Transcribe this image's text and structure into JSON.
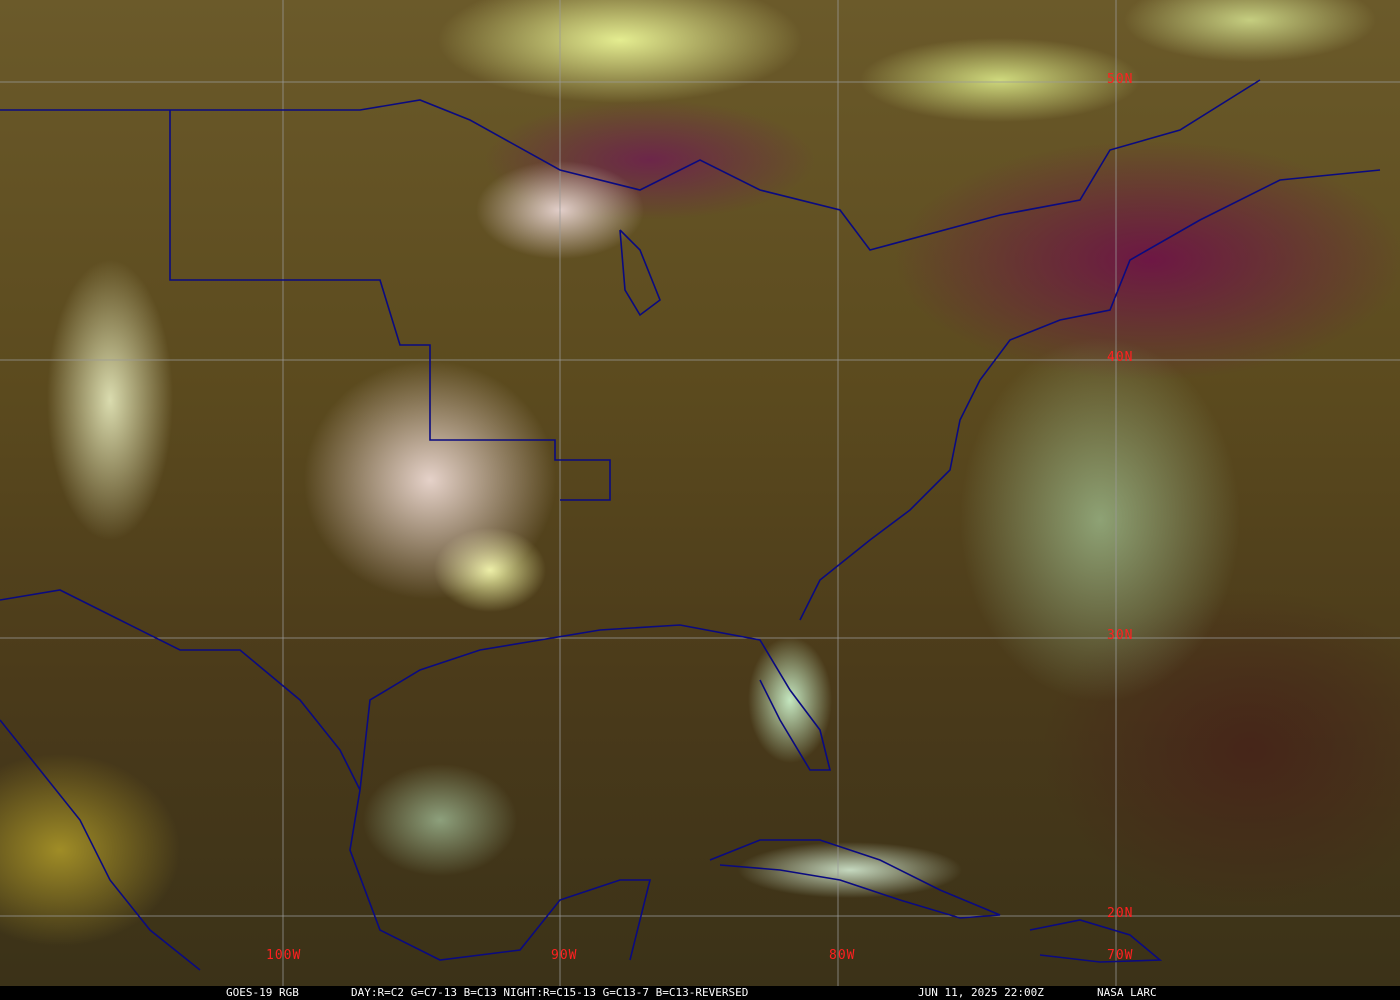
{
  "map": {
    "latitude_labels": [
      "50N",
      "40N",
      "30N",
      "20N"
    ],
    "longitude_labels": [
      "100W",
      "90W",
      "80W",
      "70W"
    ],
    "label_color": "#ff2020",
    "border_color": "#0a0a80",
    "grid_color": "#9a9a9a"
  },
  "caption": {
    "satellite": "GOES-19 RGB",
    "recipe": "DAY:R=C2 G=C7-13 B=C13 NIGHT:R=C15-13 G=C13-7 B=C13-REVERSED",
    "timestamp": "JUN 11, 2025 22:00Z",
    "credit": "NASA LARC"
  }
}
